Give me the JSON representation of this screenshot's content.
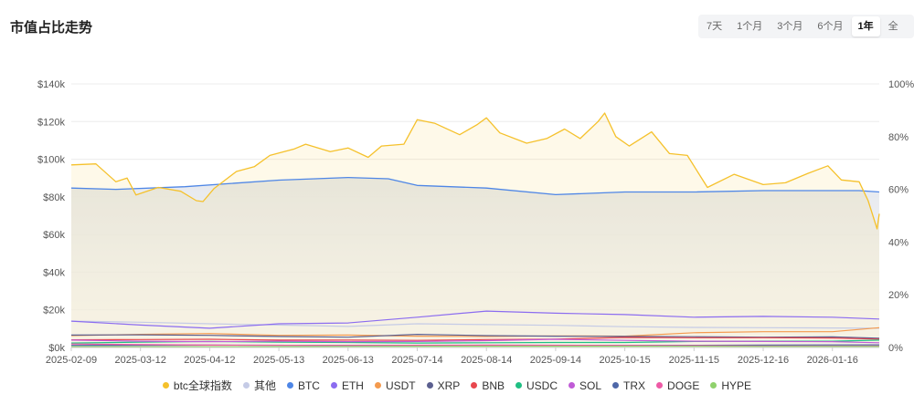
{
  "header": {
    "title": "市值占比走势"
  },
  "range_tabs": [
    {
      "label": "7天"
    },
    {
      "label": "1个月"
    },
    {
      "label": "3个月"
    },
    {
      "label": "6个月"
    },
    {
      "label": "1年"
    },
    {
      "label": "全"
    }
  ],
  "active_range": "1年",
  "colors": {
    "btc_index": "#f5c12b",
    "other": "#c5cbe6",
    "btc": "#4e86e6",
    "eth": "#8b6cf0",
    "usdt": "#f49a4e",
    "xrp": "#5b5f8f",
    "bnb": "#e8474e",
    "usdc": "#1fbf83",
    "sol": "#c05bd6",
    "trx": "#4e67a8",
    "doge": "#ee5aa6",
    "hype": "#8fd16c"
  },
  "chart_data": {
    "type": "line",
    "title": "市值占比走势",
    "x_ticks": [
      "2025-02-09",
      "2025-03-12",
      "2025-04-12",
      "2025-05-13",
      "2025-06-13",
      "2025-07-14",
      "2025-08-14",
      "2025-09-14",
      "2025-10-15",
      "2025-11-15",
      "2025-12-16",
      "2026-01-16"
    ],
    "x_range": [
      "2025-02-09",
      "2026-02-06"
    ],
    "y_left_ticks": [
      "$0k",
      "$20k",
      "$40k",
      "$60k",
      "$80k",
      "$100k",
      "$120k",
      "$140k"
    ],
    "y_left_range": [
      0,
      140000
    ],
    "y_right_ticks": [
      "0%",
      "20%",
      "40%",
      "60%",
      "80%",
      "100%"
    ],
    "y_right_range": [
      0,
      100
    ],
    "grid": true,
    "legend_position": "bottom",
    "series": [
      {
        "name": "btc全球指数",
        "key": "btc_index",
        "axis": "left",
        "area": true,
        "points": [
          [
            "2025-02-09",
            97000
          ],
          [
            "2025-02-20",
            97500
          ],
          [
            "2025-03-01",
            88000
          ],
          [
            "2025-03-06",
            90000
          ],
          [
            "2025-03-10",
            81000
          ],
          [
            "2025-03-20",
            85000
          ],
          [
            "2025-03-30",
            83000
          ],
          [
            "2025-04-06",
            78000
          ],
          [
            "2025-04-09",
            77500
          ],
          [
            "2025-04-14",
            84500
          ],
          [
            "2025-04-24",
            93500
          ],
          [
            "2025-05-02",
            96000
          ],
          [
            "2025-05-09",
            102000
          ],
          [
            "2025-05-20",
            105500
          ],
          [
            "2025-05-25",
            108000
          ],
          [
            "2025-06-05",
            104000
          ],
          [
            "2025-06-13",
            106000
          ],
          [
            "2025-06-22",
            101000
          ],
          [
            "2025-06-28",
            107000
          ],
          [
            "2025-07-08",
            108000
          ],
          [
            "2025-07-14",
            121000
          ],
          [
            "2025-07-22",
            119000
          ],
          [
            "2025-08-02",
            113000
          ],
          [
            "2025-08-10",
            118500
          ],
          [
            "2025-08-14",
            122000
          ],
          [
            "2025-08-20",
            114000
          ],
          [
            "2025-09-01",
            108500
          ],
          [
            "2025-09-10",
            111000
          ],
          [
            "2025-09-18",
            116000
          ],
          [
            "2025-09-25",
            111000
          ],
          [
            "2025-10-03",
            120000
          ],
          [
            "2025-10-06",
            124500
          ],
          [
            "2025-10-11",
            112000
          ],
          [
            "2025-10-17",
            107000
          ],
          [
            "2025-10-27",
            114500
          ],
          [
            "2025-11-04",
            103000
          ],
          [
            "2025-11-12",
            102000
          ],
          [
            "2025-11-21",
            85000
          ],
          [
            "2025-12-03",
            92000
          ],
          [
            "2025-12-16",
            86500
          ],
          [
            "2025-12-26",
            87500
          ],
          [
            "2026-01-05",
            92500
          ],
          [
            "2026-01-14",
            96500
          ],
          [
            "2026-01-20",
            89000
          ],
          [
            "2026-01-28",
            88000
          ],
          [
            "2026-02-01",
            78000
          ],
          [
            "2026-02-05",
            63000
          ],
          [
            "2026-02-06",
            71000
          ]
        ]
      },
      {
        "name": "BTC",
        "key": "btc",
        "axis": "right",
        "area": true,
        "points": [
          [
            "2025-02-09",
            60.5
          ],
          [
            "2025-03-01",
            60.0
          ],
          [
            "2025-04-01",
            61.0
          ],
          [
            "2025-05-13",
            63.5
          ],
          [
            "2025-06-13",
            64.5
          ],
          [
            "2025-07-01",
            64.0
          ],
          [
            "2025-07-14",
            61.5
          ],
          [
            "2025-08-14",
            60.5
          ],
          [
            "2025-09-14",
            58.0
          ],
          [
            "2025-10-15",
            59.0
          ],
          [
            "2025-11-15",
            59.0
          ],
          [
            "2025-12-16",
            59.5
          ],
          [
            "2026-01-16",
            59.5
          ],
          [
            "2026-01-28",
            59.5
          ],
          [
            "2026-02-06",
            59.0
          ]
        ]
      },
      {
        "name": "其他",
        "key": "other",
        "axis": "right",
        "area": false,
        "points": [
          [
            "2025-02-09",
            10.0
          ],
          [
            "2025-03-12",
            9.6
          ],
          [
            "2025-04-12",
            9.0
          ],
          [
            "2025-05-13",
            8.5
          ],
          [
            "2025-06-13",
            8.0
          ],
          [
            "2025-07-14",
            9.0
          ],
          [
            "2025-08-14",
            8.7
          ],
          [
            "2025-09-14",
            8.4
          ],
          [
            "2025-10-15",
            7.9
          ],
          [
            "2025-11-15",
            7.6
          ],
          [
            "2025-12-16",
            7.5
          ],
          [
            "2026-01-16",
            7.4
          ],
          [
            "2026-02-06",
            7.3
          ]
        ]
      },
      {
        "name": "ETH",
        "key": "eth",
        "axis": "right",
        "area": false,
        "points": [
          [
            "2025-02-09",
            10.0
          ],
          [
            "2025-03-12",
            8.5
          ],
          [
            "2025-04-12",
            7.3
          ],
          [
            "2025-05-13",
            9.0
          ],
          [
            "2025-06-13",
            9.3
          ],
          [
            "2025-07-14",
            11.5
          ],
          [
            "2025-08-14",
            13.8
          ],
          [
            "2025-09-14",
            13.0
          ],
          [
            "2025-10-15",
            12.5
          ],
          [
            "2025-11-15",
            11.5
          ],
          [
            "2025-12-16",
            11.8
          ],
          [
            "2026-01-16",
            11.5
          ],
          [
            "2026-02-06",
            10.8
          ]
        ]
      },
      {
        "name": "USDT",
        "key": "usdt",
        "axis": "right",
        "area": false,
        "points": [
          [
            "2025-02-09",
            4.5
          ],
          [
            "2025-03-12",
            5.0
          ],
          [
            "2025-04-12",
            5.3
          ],
          [
            "2025-05-13",
            4.6
          ],
          [
            "2025-06-13",
            4.7
          ],
          [
            "2025-07-14",
            4.3
          ],
          [
            "2025-08-14",
            4.2
          ],
          [
            "2025-09-14",
            4.4
          ],
          [
            "2025-10-15",
            4.3
          ],
          [
            "2025-11-15",
            5.6
          ],
          [
            "2025-12-16",
            6.0
          ],
          [
            "2026-01-16",
            6.0
          ],
          [
            "2026-02-06",
            7.5
          ]
        ]
      },
      {
        "name": "XRP",
        "key": "xrp",
        "axis": "right",
        "area": false,
        "points": [
          [
            "2025-02-09",
            4.7
          ],
          [
            "2025-03-12",
            4.8
          ],
          [
            "2025-04-12",
            4.6
          ],
          [
            "2025-05-13",
            4.2
          ],
          [
            "2025-06-13",
            3.9
          ],
          [
            "2025-07-14",
            5.0
          ],
          [
            "2025-08-14",
            4.5
          ],
          [
            "2025-09-14",
            4.3
          ],
          [
            "2025-10-15",
            4.2
          ],
          [
            "2025-11-15",
            4.1
          ],
          [
            "2025-12-16",
            3.9
          ],
          [
            "2026-01-16",
            4.0
          ],
          [
            "2026-02-06",
            3.5
          ]
        ]
      },
      {
        "name": "BNB",
        "key": "bnb",
        "axis": "right",
        "area": false,
        "points": [
          [
            "2025-02-09",
            2.9
          ],
          [
            "2025-03-12",
            3.0
          ],
          [
            "2025-04-12",
            3.1
          ],
          [
            "2025-05-13",
            2.8
          ],
          [
            "2025-06-13",
            2.8
          ],
          [
            "2025-07-14",
            2.7
          ],
          [
            "2025-08-14",
            3.0
          ],
          [
            "2025-09-14",
            3.2
          ],
          [
            "2025-10-15",
            3.8
          ],
          [
            "2025-11-15",
            3.7
          ],
          [
            "2025-12-16",
            3.7
          ],
          [
            "2026-01-16",
            3.6
          ],
          [
            "2026-02-06",
            3.2
          ]
        ]
      },
      {
        "name": "USDC",
        "key": "usdc",
        "axis": "right",
        "area": false,
        "points": [
          [
            "2025-02-09",
            1.7
          ],
          [
            "2025-03-12",
            2.0
          ],
          [
            "2025-04-12",
            2.3
          ],
          [
            "2025-05-13",
            2.0
          ],
          [
            "2025-06-13",
            1.9
          ],
          [
            "2025-07-14",
            1.7
          ],
          [
            "2025-08-14",
            1.8
          ],
          [
            "2025-09-14",
            1.9
          ],
          [
            "2025-10-15",
            1.9
          ],
          [
            "2025-11-15",
            2.3
          ],
          [
            "2025-12-16",
            2.4
          ],
          [
            "2026-01-16",
            2.4
          ],
          [
            "2026-02-06",
            2.8
          ]
        ]
      },
      {
        "name": "SOL",
        "key": "sol",
        "axis": "right",
        "area": false,
        "points": [
          [
            "2025-02-09",
            2.8
          ],
          [
            "2025-03-12",
            2.4
          ],
          [
            "2025-04-12",
            2.2
          ],
          [
            "2025-05-13",
            2.4
          ],
          [
            "2025-06-13",
            2.2
          ],
          [
            "2025-07-14",
            2.3
          ],
          [
            "2025-08-14",
            2.6
          ],
          [
            "2025-09-14",
            3.1
          ],
          [
            "2025-10-15",
            2.7
          ],
          [
            "2025-11-15",
            2.4
          ],
          [
            "2025-12-16",
            2.3
          ],
          [
            "2026-01-16",
            2.2
          ],
          [
            "2026-02-06",
            1.8
          ]
        ]
      },
      {
        "name": "TRX",
        "key": "trx",
        "axis": "right",
        "area": false,
        "points": [
          [
            "2025-02-09",
            0.8
          ],
          [
            "2025-04-12",
            0.9
          ],
          [
            "2025-06-13",
            0.8
          ],
          [
            "2025-08-14",
            0.8
          ],
          [
            "2025-10-15",
            0.8
          ],
          [
            "2025-12-16",
            0.9
          ],
          [
            "2026-02-06",
            1.0
          ]
        ]
      },
      {
        "name": "DOGE",
        "key": "doge",
        "axis": "right",
        "area": false,
        "points": [
          [
            "2025-02-09",
            1.3
          ],
          [
            "2025-04-12",
            0.9
          ],
          [
            "2025-06-13",
            0.8
          ],
          [
            "2025-08-14",
            0.9
          ],
          [
            "2025-10-15",
            0.8
          ],
          [
            "2025-12-16",
            0.6
          ],
          [
            "2026-02-06",
            0.6
          ]
        ]
      },
      {
        "name": "HYPE",
        "key": "hype",
        "axis": "right",
        "area": false,
        "points": [
          [
            "2025-02-09",
            0.3
          ],
          [
            "2025-04-12",
            0.3
          ],
          [
            "2025-06-13",
            0.4
          ],
          [
            "2025-08-14",
            0.5
          ],
          [
            "2025-10-15",
            0.5
          ],
          [
            "2025-12-16",
            0.4
          ],
          [
            "2026-02-06",
            0.4
          ]
        ]
      }
    ],
    "legend": [
      {
        "name": "btc全球指数",
        "key": "btc_index"
      },
      {
        "name": "其他",
        "key": "other"
      },
      {
        "name": "BTC",
        "key": "btc"
      },
      {
        "name": "ETH",
        "key": "eth"
      },
      {
        "name": "USDT",
        "key": "usdt"
      },
      {
        "name": "XRP",
        "key": "xrp"
      },
      {
        "name": "BNB",
        "key": "bnb"
      },
      {
        "name": "USDC",
        "key": "usdc"
      },
      {
        "name": "SOL",
        "key": "sol"
      },
      {
        "name": "TRX",
        "key": "trx"
      },
      {
        "name": "DOGE",
        "key": "doge"
      },
      {
        "name": "HYPE",
        "key": "hype"
      }
    ]
  }
}
